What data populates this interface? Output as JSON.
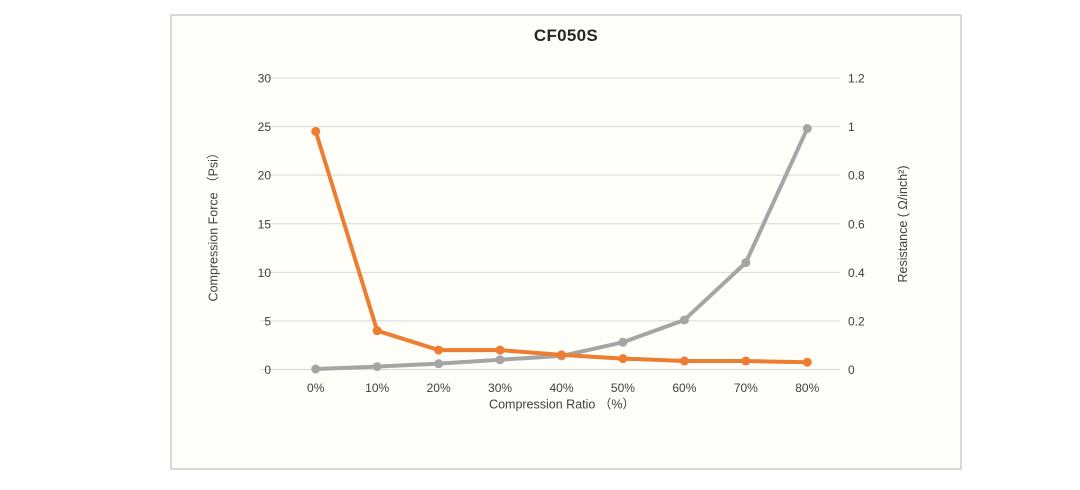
{
  "chart_data": {
    "type": "line",
    "title": "CF050S",
    "categories": [
      "0%",
      "10%",
      "20%",
      "30%",
      "40%",
      "50%",
      "60%",
      "70%",
      "80%"
    ],
    "xlabel": "Compression Ratio （%）",
    "series": [
      {
        "name": "Compression Force",
        "axis": "left",
        "color": "#A5A5A5",
        "values": [
          0.05,
          0.3,
          0.6,
          1.0,
          1.4,
          2.8,
          5.1,
          11,
          24.8
        ]
      },
      {
        "name": "Resistance",
        "axis": "right",
        "color": "#ED7D31",
        "values": [
          0.98,
          0.16,
          0.08,
          0.08,
          0.06,
          0.045,
          0.035,
          0.035,
          0.03
        ]
      }
    ],
    "axes": {
      "left": {
        "label": "Compression Force （Psi）",
        "min": 0,
        "max": 30,
        "ticks": [
          0,
          5,
          10,
          15,
          20,
          25,
          30
        ]
      },
      "right": {
        "label": "Resistance ( Ω/inch²)",
        "min": 0,
        "max": 1.2,
        "ticks": [
          0,
          0.2,
          0.4,
          0.6,
          0.8,
          1,
          1.2
        ]
      }
    },
    "grid": true,
    "legend": "none",
    "style": {
      "gridline_color": "#D9D9D9",
      "tick_text_color": "#404040",
      "title_color": "#262626",
      "chart_background": "#FFFEF9",
      "chart_border_color": "#D9D9D9",
      "line_width": 4,
      "marker_radius": 4.5
    }
  }
}
